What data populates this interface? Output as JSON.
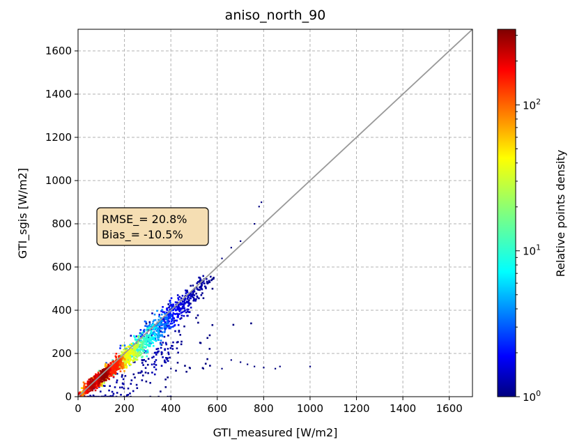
{
  "chart_data": {
    "type": "heatmap",
    "title": "aniso_north_90",
    "xlabel": "GTI_measured [W/m2]",
    "ylabel": "GTI_sgis [W/m2]",
    "xlim": [
      0,
      1700
    ],
    "ylim": [
      0,
      1700
    ],
    "x_ticks": [
      0,
      200,
      400,
      600,
      800,
      1000,
      1200,
      1400,
      1600
    ],
    "y_ticks": [
      0,
      200,
      400,
      600,
      800,
      1000,
      1200,
      1400,
      1600
    ],
    "grid": true,
    "identity_line": {
      "from": [
        0,
        0
      ],
      "to": [
        1700,
        1700
      ],
      "color": "#999999"
    },
    "annotation": {
      "lines": [
        "RMSE_= 20.8%",
        "Bias_= -10.5%"
      ],
      "position": "upper-left-middle",
      "facecolor": "#f5deb3"
    },
    "colorbar": {
      "label": "Relative points density",
      "scale": "log",
      "range": [
        1,
        330
      ],
      "ticks": [
        {
          "value": 1,
          "base": "10",
          "exp": "0"
        },
        {
          "value": 10,
          "base": "10",
          "exp": "1"
        },
        {
          "value": 100,
          "base": "10",
          "exp": "2"
        }
      ],
      "colormap": "jet"
    },
    "density_clusters": [
      {
        "x": 0,
        "y": 0,
        "spread": 10,
        "n": 120,
        "density": 200
      },
      {
        "x": 60,
        "y": 55,
        "spread": 25,
        "n": 220,
        "density": 250
      },
      {
        "x": 110,
        "y": 100,
        "spread": 28,
        "n": 260,
        "density": 300
      },
      {
        "x": 160,
        "y": 140,
        "spread": 32,
        "n": 240,
        "density": 150
      },
      {
        "x": 220,
        "y": 190,
        "spread": 40,
        "n": 220,
        "density": 40
      },
      {
        "x": 280,
        "y": 250,
        "spread": 50,
        "n": 200,
        "density": 10
      },
      {
        "x": 340,
        "y": 320,
        "spread": 55,
        "n": 180,
        "density": 4
      },
      {
        "x": 400,
        "y": 380,
        "spread": 50,
        "n": 150,
        "density": 2
      },
      {
        "x": 460,
        "y": 440,
        "spread": 40,
        "n": 90,
        "density": 1.5
      },
      {
        "x": 530,
        "y": 520,
        "spread": 30,
        "n": 50,
        "density": 1.2
      },
      {
        "x": 350,
        "y": 200,
        "spread": 60,
        "n": 80,
        "density": 1.3
      },
      {
        "x": 150,
        "y": 10,
        "spread": 120,
        "n": 90,
        "density": 1.2
      },
      {
        "x": 450,
        "y": 130,
        "spread": 120,
        "n": 30,
        "density": 1.0
      }
    ],
    "outlier_points": [
      [
        620,
        640
      ],
      [
        660,
        690
      ],
      [
        700,
        720
      ],
      [
        760,
        800
      ],
      [
        780,
        880
      ],
      [
        790,
        900
      ],
      [
        700,
        160
      ],
      [
        730,
        150
      ],
      [
        760,
        140
      ],
      [
        850,
        130
      ],
      [
        870,
        140
      ],
      [
        1000,
        140
      ],
      [
        620,
        130
      ],
      [
        540,
        130
      ],
      [
        480,
        135
      ],
      [
        400,
        130
      ],
      [
        660,
        170
      ],
      [
        800,
        135
      ]
    ]
  }
}
